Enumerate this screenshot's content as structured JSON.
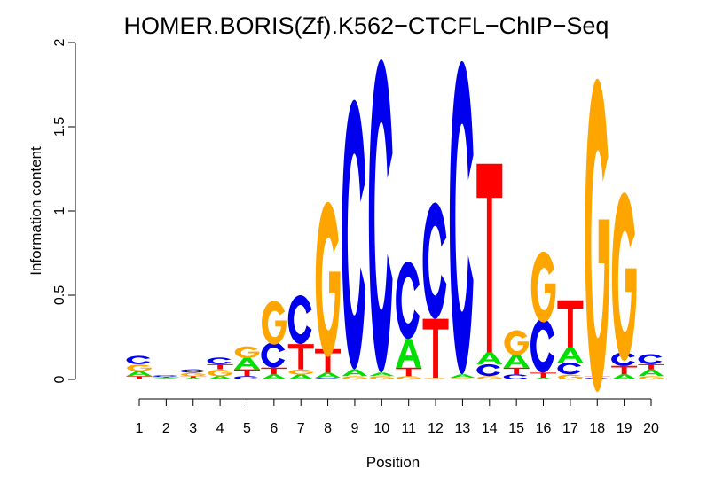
{
  "chart_data": {
    "type": "sequence-logo",
    "title": "HOMER.BORIS(Zf).K562−CTCFL−ChIP−Seq",
    "xlabel": "Position",
    "ylabel": "Information content",
    "ylim": [
      0,
      2
    ],
    "yticks": [
      "0",
      "0.5",
      "1",
      "1.5",
      "2"
    ],
    "xticks": [
      "1",
      "2",
      "3",
      "4",
      "5",
      "6",
      "7",
      "8",
      "9",
      "10",
      "11",
      "12",
      "13",
      "14",
      "15",
      "16",
      "17",
      "18",
      "19",
      "20"
    ],
    "colors": {
      "A": "#00e000",
      "C": "#0000ee",
      "G": "#ffa500",
      "T": "#ff0000"
    },
    "positions": [
      [
        [
          "T",
          0.02
        ],
        [
          "A",
          0.03
        ],
        [
          "G",
          0.04
        ],
        [
          "C",
          0.05
        ]
      ],
      [
        [
          "G",
          0.005
        ],
        [
          "A",
          0.005
        ],
        [
          "T",
          0.005
        ],
        [
          "C",
          0.01
        ]
      ],
      [
        [
          "A",
          0.01
        ],
        [
          "T",
          0.01
        ],
        [
          "G",
          0.02
        ],
        [
          "C",
          0.02
        ]
      ],
      [
        [
          "A",
          0.02
        ],
        [
          "G",
          0.04
        ],
        [
          "T",
          0.03
        ],
        [
          "C",
          0.04
        ]
      ],
      [
        [
          "C",
          0.02
        ],
        [
          "T",
          0.04
        ],
        [
          "A",
          0.07
        ],
        [
          "G",
          0.07
        ]
      ],
      [
        [
          "A",
          0.03
        ],
        [
          "T",
          0.04
        ],
        [
          "C",
          0.15
        ],
        [
          "G",
          0.26
        ]
      ],
      [
        [
          "A",
          0.03
        ],
        [
          "G",
          0.03
        ],
        [
          "T",
          0.15
        ],
        [
          "C",
          0.29
        ]
      ],
      [
        [
          "C",
          0.01
        ],
        [
          "A",
          0.03
        ],
        [
          "T",
          0.14
        ],
        [
          "G",
          0.92
        ]
      ],
      [
        [
          "G",
          0.02
        ],
        [
          "A",
          0.04
        ],
        [
          "C",
          1.6
        ]
      ],
      [
        [
          "G",
          0.02
        ],
        [
          "A",
          0.02
        ],
        [
          "C",
          1.86
        ]
      ],
      [
        [
          "G",
          0.02
        ],
        [
          "T",
          0.05
        ],
        [
          "A",
          0.17
        ],
        [
          "C",
          0.46
        ]
      ],
      [
        [
          "G",
          0.01
        ],
        [
          "T",
          0.35
        ],
        [
          "C",
          0.69
        ]
      ],
      [
        [
          "G",
          0.01
        ],
        [
          "A",
          0.02
        ],
        [
          "C",
          1.86
        ]
      ],
      [
        [
          "G",
          0.02
        ],
        [
          "C",
          0.07
        ],
        [
          "A",
          0.07
        ],
        [
          "T",
          1.12
        ]
      ],
      [
        [
          "C",
          0.03
        ],
        [
          "T",
          0.04
        ],
        [
          "A",
          0.08
        ],
        [
          "G",
          0.15
        ]
      ],
      [
        [
          "A",
          0.01
        ],
        [
          "T",
          0.03
        ],
        [
          "C",
          0.32
        ],
        [
          "G",
          0.42
        ]
      ],
      [
        [
          "G",
          0.03
        ],
        [
          "C",
          0.07
        ],
        [
          "A",
          0.09
        ],
        [
          "T",
          0.28
        ]
      ],
      [
        [
          "C",
          0.01
        ],
        [
          "T",
          0.01
        ],
        [
          "G",
          1.86
        ]
      ],
      [
        [
          "A",
          0.03
        ],
        [
          "T",
          0.05
        ],
        [
          "C",
          0.08
        ],
        [
          "G",
          1.0
        ]
      ],
      [
        [
          "G",
          0.02
        ],
        [
          "A",
          0.04
        ],
        [
          "T",
          0.03
        ],
        [
          "C",
          0.06
        ]
      ]
    ]
  }
}
